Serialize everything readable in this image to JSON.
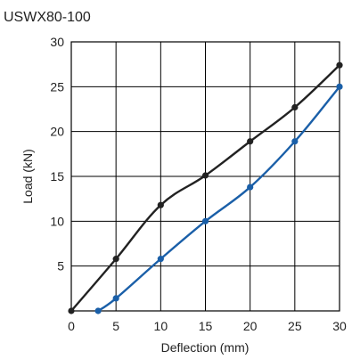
{
  "chart_data": {
    "type": "line",
    "title": "USWX80-100",
    "xlabel": "Deflection (mm)",
    "ylabel": "Load (kN)",
    "xlim": [
      0,
      30
    ],
    "ylim": [
      0,
      30
    ],
    "x_ticks": [
      0,
      5,
      10,
      15,
      20,
      25,
      30
    ],
    "y_ticks": [
      5,
      10,
      15,
      20,
      25,
      30
    ],
    "x_tick_labels": [
      "0",
      "5",
      "10",
      "15",
      "20",
      "25",
      "30"
    ],
    "y_tick_labels": [
      "5",
      "10",
      "15",
      "20",
      "25",
      "30"
    ],
    "grid": true,
    "legend": "none",
    "series": [
      {
        "color": "#222222",
        "points": [
          {
            "x": 0,
            "y": 0
          },
          {
            "x": 5,
            "y": 5.8
          },
          {
            "x": 10,
            "y": 11.8
          },
          {
            "x": 15,
            "y": 15.1
          },
          {
            "x": 20,
            "y": 18.9
          },
          {
            "x": 25,
            "y": 22.7
          },
          {
            "x": 30,
            "y": 27.4
          }
        ]
      },
      {
        "color": "#1a5fa8",
        "points": [
          {
            "x": 3,
            "y": 0
          },
          {
            "x": 5,
            "y": 1.4
          },
          {
            "x": 10,
            "y": 5.8
          },
          {
            "x": 15,
            "y": 10.0
          },
          {
            "x": 20,
            "y": 13.8
          },
          {
            "x": 25,
            "y": 18.9
          },
          {
            "x": 30,
            "y": 25.0
          }
        ]
      }
    ]
  }
}
